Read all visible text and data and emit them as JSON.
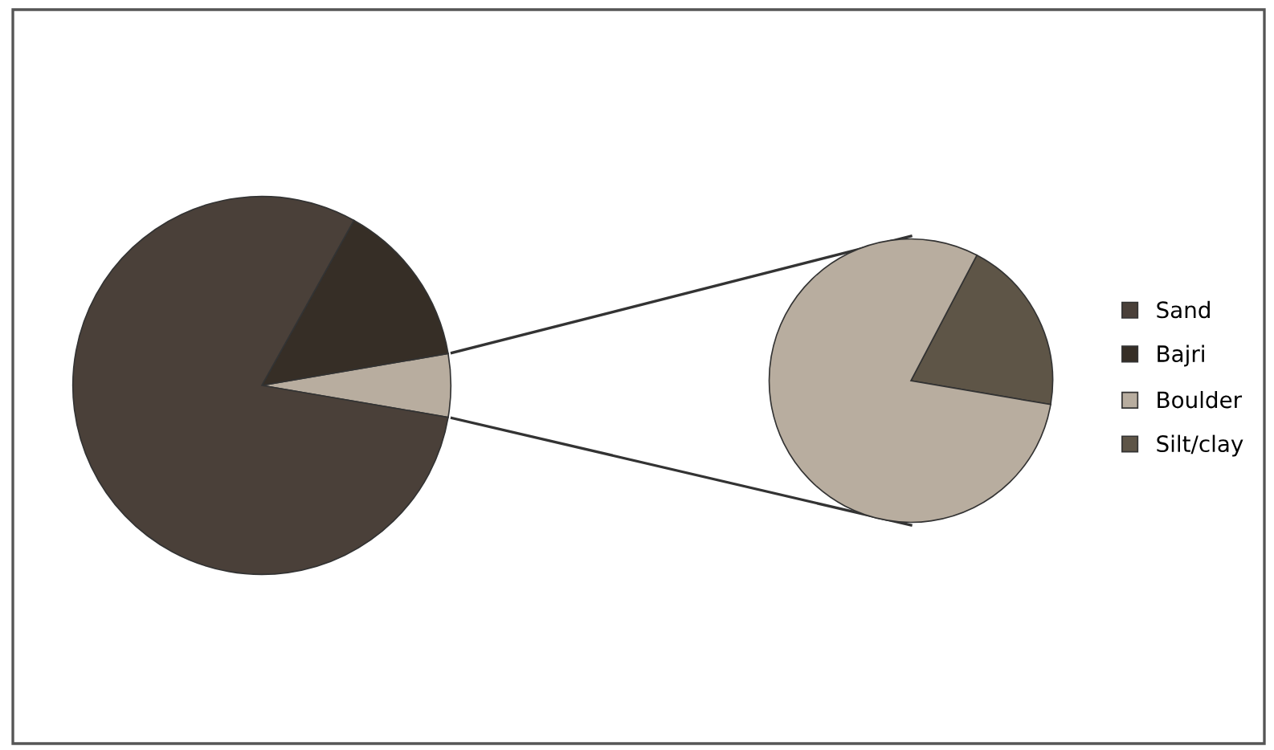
{
  "chart_data": [
    {
      "type": "pie",
      "categories": [
        "Sand",
        "Bajri",
        null
      ],
      "values": [
        80.4,
        14.2,
        5.4
      ],
      "colors": [
        "#4a4039",
        "#362e26",
        "#b8ad9f"
      ],
      "legend": "right"
    },
    {
      "type": "pie",
      "categories": [
        "Boulder",
        "Silt/clay"
      ],
      "values": [
        80,
        20
      ],
      "colors": [
        "#b8ad9f",
        "#5e5547"
      ],
      "legend": "right"
    }
  ]
}
